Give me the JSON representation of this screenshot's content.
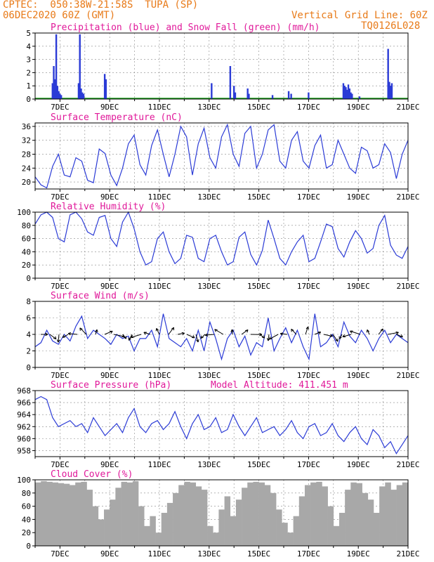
{
  "header": {
    "left_line1": "CPTEC:  050:38W-21:58S  TUPA (SP)",
    "left_line2": "06DEC2020 60Z (GMT)",
    "right_line1": "Vertical Grid Line: 60Z",
    "right_line2": "TQ0126L028"
  },
  "colors": {
    "header": "#e87a18",
    "title": "#e0199a",
    "line": "#2b3bd6",
    "snow": "#1aa31a",
    "cloud": "#a8a8a8",
    "grid": "#888888"
  },
  "x_axis": {
    "tick_labels": [
      "7DEC",
      "9DEC",
      "11DEC",
      "13DEC",
      "15DEC",
      "17DEC",
      "19DEC",
      "21DEC"
    ]
  },
  "chart_data": [
    {
      "id": "precip",
      "type": "bar",
      "title": "Precipitation (blue) and Snow Fall (green) (mm/h)",
      "ylim": [
        0,
        5
      ],
      "y_ticks": [
        0,
        1,
        2,
        3,
        4,
        5
      ],
      "series": [
        {
          "color": "blue",
          "values": [
            [
              0.7,
              1.2
            ],
            [
              0.75,
              2.5
            ],
            [
              0.8,
              1.5
            ],
            [
              0.85,
              4.9
            ],
            [
              0.9,
              1.0
            ],
            [
              0.95,
              0.6
            ],
            [
              1.0,
              0.4
            ],
            [
              1.05,
              0.3
            ],
            [
              1.75,
              1.2
            ],
            [
              1.8,
              4.9
            ],
            [
              1.85,
              0.8
            ],
            [
              1.9,
              0.5
            ],
            [
              1.95,
              0.4
            ],
            [
              2.8,
              1.9
            ],
            [
              2.85,
              1.5
            ],
            [
              7.1,
              1.2
            ],
            [
              7.85,
              2.5
            ],
            [
              8.0,
              1.0
            ],
            [
              8.05,
              0.5
            ],
            [
              8.55,
              0.8
            ],
            [
              8.6,
              0.4
            ],
            [
              9.55,
              0.3
            ],
            [
              10.2,
              0.6
            ],
            [
              10.3,
              0.4
            ],
            [
              11.0,
              0.5
            ],
            [
              12.4,
              1.2
            ],
            [
              12.45,
              1.0
            ],
            [
              12.5,
              0.9
            ],
            [
              12.55,
              0.7
            ],
            [
              12.6,
              1.1
            ],
            [
              12.65,
              0.8
            ],
            [
              12.7,
              0.5
            ],
            [
              12.75,
              0.4
            ],
            [
              13.05,
              0.2
            ],
            [
              14.2,
              3.8
            ],
            [
              14.25,
              1.3
            ],
            [
              14.3,
              1.0
            ],
            [
              14.35,
              1.2
            ]
          ]
        }
      ]
    },
    {
      "id": "temp",
      "type": "line",
      "title": "Surface Temperature (nC)",
      "ylim": [
        18,
        37
      ],
      "y_ticks": [
        20,
        24,
        28,
        32,
        36
      ],
      "series": [
        {
          "color": "blue",
          "values": [
            21.5,
            19.2,
            18.3,
            24.5,
            28.0,
            22.0,
            21.5,
            27.0,
            26.0,
            20.5,
            19.8,
            29.5,
            28.2,
            22.0,
            19.0,
            24.0,
            31.0,
            33.5,
            25.0,
            22.0,
            30.5,
            35.0,
            28.0,
            21.5,
            28.0,
            36.0,
            33.0,
            22.0,
            31.0,
            35.5,
            27.0,
            24.0,
            33.0,
            36.5,
            28.0,
            24.5,
            34.0,
            36.0,
            24.0,
            28.0,
            35.0,
            36.5,
            26.0,
            24.0,
            32.0,
            34.5,
            26.0,
            24.0,
            30.5,
            33.5,
            24.0,
            25.0,
            32.0,
            28.0,
            24.0,
            22.5,
            30.0,
            29.0,
            24.0,
            25.0,
            31.0,
            28.5,
            21.0,
            28.0,
            32.0
          ]
        }
      ]
    },
    {
      "id": "rh",
      "type": "line",
      "title": "Relative Humidity (%)",
      "ylim": [
        0,
        100
      ],
      "y_ticks": [
        0,
        20,
        40,
        60,
        80,
        100
      ],
      "series": [
        {
          "color": "blue",
          "values": [
            82,
            96,
            100,
            92,
            60,
            55,
            96,
            100,
            90,
            70,
            65,
            92,
            95,
            60,
            48,
            85,
            100,
            75,
            40,
            20,
            25,
            60,
            70,
            40,
            22,
            30,
            65,
            62,
            30,
            25,
            60,
            65,
            40,
            20,
            25,
            62,
            70,
            36,
            20,
            42,
            88,
            60,
            30,
            20,
            40,
            55,
            65,
            25,
            30,
            55,
            82,
            78,
            45,
            32,
            55,
            72,
            60,
            38,
            45,
            80,
            95,
            50,
            35,
            30,
            48
          ]
        }
      ]
    },
    {
      "id": "wind",
      "type": "line",
      "title": "Surface Wind (m/s)",
      "ylim": [
        0,
        8
      ],
      "y_ticks": [
        0,
        2,
        4,
        6,
        8
      ],
      "series": [
        {
          "color": "blue",
          "values": [
            2.5,
            3.0,
            4.5,
            3.2,
            2.8,
            4.0,
            3.2,
            5.0,
            6.2,
            3.5,
            4.5,
            4.0,
            3.5,
            2.8,
            4.0,
            3.5,
            3.8,
            2.0,
            3.5,
            3.5,
            4.5,
            2.5,
            6.5,
            3.5,
            3.0,
            2.5,
            3.5,
            2.0,
            4.5,
            2.0,
            5.5,
            3.5,
            1.0,
            3.5,
            4.5,
            2.5,
            3.8,
            1.5,
            3.0,
            2.5,
            6.0,
            2.0,
            3.5,
            4.8,
            3.0,
            4.5,
            2.5,
            1.0,
            6.5,
            2.5,
            3.0,
            4.0,
            2.5,
            5.5,
            3.8,
            3.0,
            4.5,
            3.5,
            2.0,
            3.5,
            4.5,
            3.0,
            4.0,
            3.5,
            3.0
          ]
        }
      ]
    },
    {
      "id": "pres",
      "type": "line",
      "title": "Surface Pressure (hPa)",
      "annotation": "Model Altitude: 411.451  m",
      "ylim": [
        957,
        968
      ],
      "y_ticks": [
        958,
        960,
        962,
        964,
        966,
        968
      ],
      "series": [
        {
          "color": "blue",
          "values": [
            966.5,
            967.0,
            966.5,
            963.5,
            962.0,
            962.5,
            963.0,
            962.0,
            962.5,
            961.0,
            963.5,
            962.0,
            960.5,
            961.5,
            962.5,
            961.0,
            963.5,
            965.0,
            962.0,
            961.0,
            962.5,
            963.0,
            961.5,
            962.5,
            964.5,
            962.0,
            960.0,
            962.5,
            964.0,
            961.5,
            962.0,
            963.5,
            961.0,
            961.5,
            964.0,
            962.0,
            960.5,
            962.0,
            963.5,
            961.0,
            961.5,
            962.0,
            960.5,
            961.5,
            963.0,
            961.0,
            960.0,
            962.0,
            962.5,
            960.5,
            961.0,
            962.5,
            960.5,
            959.5,
            961.0,
            962.0,
            960.0,
            959.0,
            961.5,
            960.5,
            958.5,
            959.5,
            957.5,
            959.0,
            960.5
          ]
        }
      ]
    },
    {
      "id": "cloud",
      "type": "bar",
      "title": "Cloud Cover (%)",
      "ylim": [
        0,
        100
      ],
      "y_ticks": [
        0,
        20,
        40,
        60,
        80,
        100
      ],
      "series": [
        {
          "color": "gray",
          "values": [
            96,
            98,
            97,
            96,
            95,
            94,
            92,
            96,
            97,
            85,
            60,
            40,
            55,
            70,
            88,
            97,
            96,
            98,
            60,
            30,
            45,
            20,
            50,
            65,
            80,
            92,
            97,
            96,
            90,
            85,
            30,
            20,
            55,
            75,
            45,
            70,
            88,
            96,
            97,
            96,
            92,
            80,
            55,
            35,
            20,
            45,
            75,
            92,
            96,
            97,
            90,
            60,
            30,
            50,
            85,
            96,
            95,
            80,
            70,
            50,
            90,
            96,
            85,
            92,
            96
          ]
        }
      ]
    }
  ]
}
